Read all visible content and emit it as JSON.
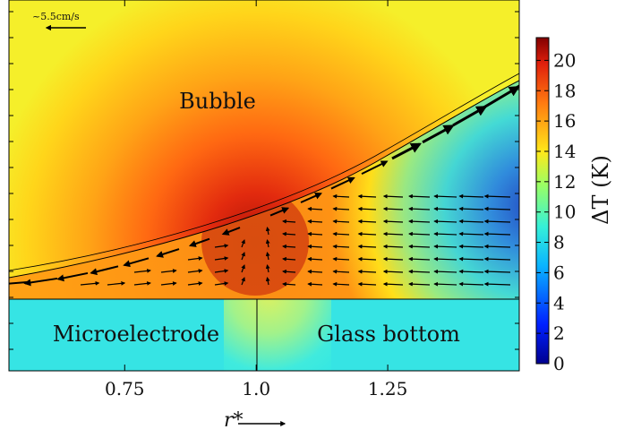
{
  "chart_data": {
    "type": "heatmap",
    "title": "",
    "xlabel": "r*",
    "ylabel": "",
    "xlim": [
      0.53,
      1.5
    ],
    "xticks": [
      "0.75",
      "1.0",
      "1.25"
    ],
    "xtick_values": [
      0.75,
      1.0,
      1.25
    ],
    "colorbar": {
      "label": "ΔT (K)",
      "min": 0,
      "max": 21.5,
      "ticks": [
        "0",
        "2",
        "4",
        "6",
        "8",
        "10",
        "12",
        "14",
        "16",
        "18",
        "20"
      ],
      "colormap": "jet"
    },
    "regions": {
      "bubble": "Bubble",
      "left_bottom": "Microelectrode",
      "right_bottom": "Glass bottom"
    },
    "scale_arrow_label": "~5.5cm/s",
    "hot_spot": {
      "r": 1.0,
      "delta_T": 21
    },
    "grid": true
  },
  "colors": {
    "hot": "#c21a0c",
    "warm": "#ff6a10",
    "yellow": "#ffdc10",
    "cyan": "#2fe6e6",
    "blue": "#0a30d8"
  }
}
